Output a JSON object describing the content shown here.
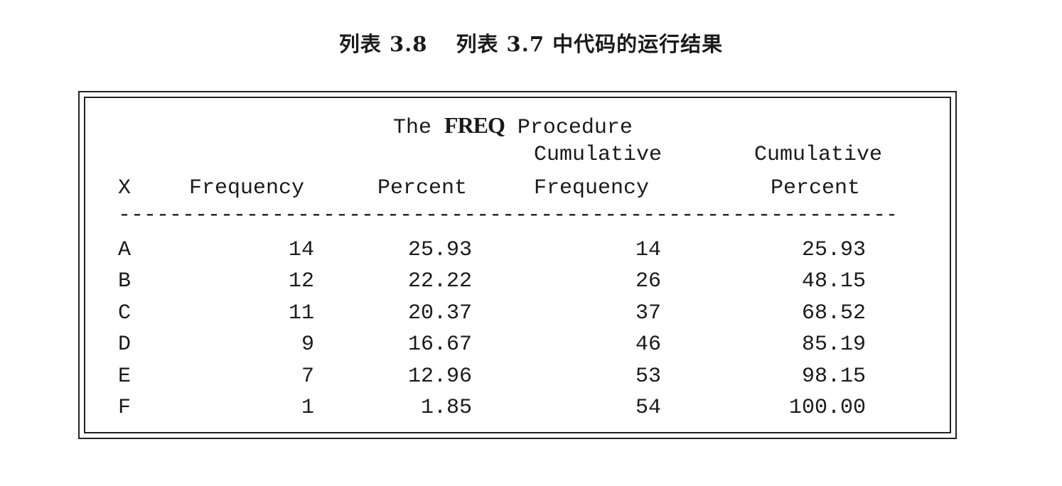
{
  "caption": {
    "left": "列表 3.8",
    "right": "列表 3.7 中代码的运行结果"
  },
  "procedure": {
    "prefix": "The ",
    "bold": "FREQ",
    "suffix": " Procedure"
  },
  "headers": {
    "x": "X",
    "frequency": "Frequency",
    "percent": "Percent",
    "cum_freq_line1": "Cumulative",
    "cum_freq_line2": "Frequency",
    "cum_pct_line1": "Cumulative",
    "cum_pct_line2": "Percent"
  },
  "separator": "-----------------------------------------------------------------------",
  "rows": [
    {
      "x": "A",
      "frequency": "14",
      "percent": "25.93",
      "cum_freq": "14",
      "cum_pct": "25.93"
    },
    {
      "x": "B",
      "frequency": "12",
      "percent": "22.22",
      "cum_freq": "26",
      "cum_pct": "48.15"
    },
    {
      "x": "C",
      "frequency": "11",
      "percent": "20.37",
      "cum_freq": "37",
      "cum_pct": "68.52"
    },
    {
      "x": "D",
      "frequency": "9",
      "percent": "16.67",
      "cum_freq": "46",
      "cum_pct": "85.19"
    },
    {
      "x": "E",
      "frequency": "7",
      "percent": "12.96",
      "cum_freq": "53",
      "cum_pct": "98.15"
    },
    {
      "x": "F",
      "frequency": "1",
      "percent": "1.85",
      "cum_freq": "54",
      "cum_pct": "100.00"
    }
  ]
}
